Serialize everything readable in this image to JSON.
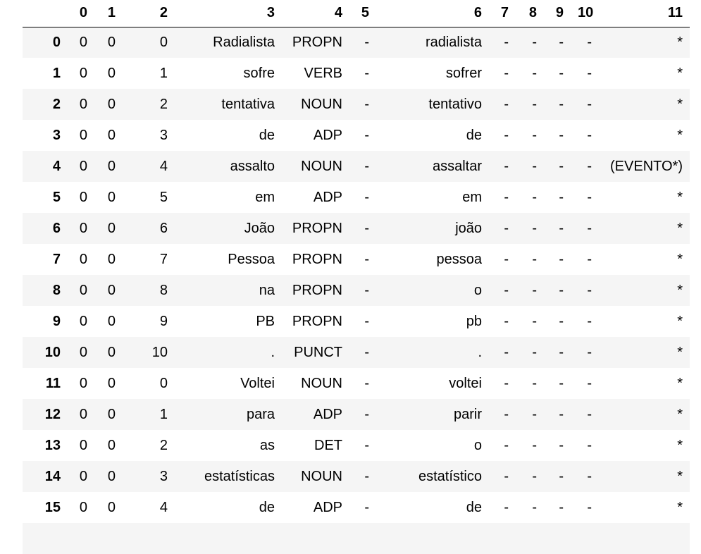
{
  "columns": [
    "",
    "0",
    "1",
    "2",
    "3",
    "4",
    "5",
    "6",
    "7",
    "8",
    "9",
    "10",
    "11"
  ],
  "rows": [
    {
      "index": "0",
      "cells": [
        "0",
        "0",
        "0",
        "Radialista",
        "PROPN",
        "-",
        "radialista",
        "-",
        "-",
        "-",
        "-",
        "*"
      ]
    },
    {
      "index": "1",
      "cells": [
        "0",
        "0",
        "1",
        "sofre",
        "VERB",
        "-",
        "sofrer",
        "-",
        "-",
        "-",
        "-",
        "*"
      ]
    },
    {
      "index": "2",
      "cells": [
        "0",
        "0",
        "2",
        "tentativa",
        "NOUN",
        "-",
        "tentativo",
        "-",
        "-",
        "-",
        "-",
        "*"
      ]
    },
    {
      "index": "3",
      "cells": [
        "0",
        "0",
        "3",
        "de",
        "ADP",
        "-",
        "de",
        "-",
        "-",
        "-",
        "-",
        "*"
      ]
    },
    {
      "index": "4",
      "cells": [
        "0",
        "0",
        "4",
        "assalto",
        "NOUN",
        "-",
        "assaltar",
        "-",
        "-",
        "-",
        "-",
        "(EVENTO*)"
      ]
    },
    {
      "index": "5",
      "cells": [
        "0",
        "0",
        "5",
        "em",
        "ADP",
        "-",
        "em",
        "-",
        "-",
        "-",
        "-",
        "*"
      ]
    },
    {
      "index": "6",
      "cells": [
        "0",
        "0",
        "6",
        "João",
        "PROPN",
        "-",
        "joão",
        "-",
        "-",
        "-",
        "-",
        "*"
      ]
    },
    {
      "index": "7",
      "cells": [
        "0",
        "0",
        "7",
        "Pessoa",
        "PROPN",
        "-",
        "pessoa",
        "-",
        "-",
        "-",
        "-",
        "*"
      ]
    },
    {
      "index": "8",
      "cells": [
        "0",
        "0",
        "8",
        "na",
        "PROPN",
        "-",
        "o",
        "-",
        "-",
        "-",
        "-",
        "*"
      ]
    },
    {
      "index": "9",
      "cells": [
        "0",
        "0",
        "9",
        "PB",
        "PROPN",
        "-",
        "pb",
        "-",
        "-",
        "-",
        "-",
        "*"
      ]
    },
    {
      "index": "10",
      "cells": [
        "0",
        "0",
        "10",
        ".",
        "PUNCT",
        "-",
        ".",
        "-",
        "-",
        "-",
        "-",
        "*"
      ]
    },
    {
      "index": "11",
      "cells": [
        "0",
        "0",
        "0",
        "Voltei",
        "NOUN",
        "-",
        "voltei",
        "-",
        "-",
        "-",
        "-",
        "*"
      ]
    },
    {
      "index": "12",
      "cells": [
        "0",
        "0",
        "1",
        "para",
        "ADP",
        "-",
        "parir",
        "-",
        "-",
        "-",
        "-",
        "*"
      ]
    },
    {
      "index": "13",
      "cells": [
        "0",
        "0",
        "2",
        "as",
        "DET",
        "-",
        "o",
        "-",
        "-",
        "-",
        "-",
        "*"
      ]
    },
    {
      "index": "14",
      "cells": [
        "0",
        "0",
        "3",
        "estatísticas",
        "NOUN",
        "-",
        "estatístico",
        "-",
        "-",
        "-",
        "-",
        "*"
      ]
    },
    {
      "index": "15",
      "cells": [
        "0",
        "0",
        "4",
        "de",
        "ADP",
        "-",
        "de",
        "-",
        "-",
        "-",
        "-",
        "*"
      ]
    },
    {
      "index": "",
      "cells": [
        "",
        "",
        "",
        "",
        "",
        "",
        "",
        "",
        "",
        "",
        "",
        ""
      ]
    }
  ]
}
